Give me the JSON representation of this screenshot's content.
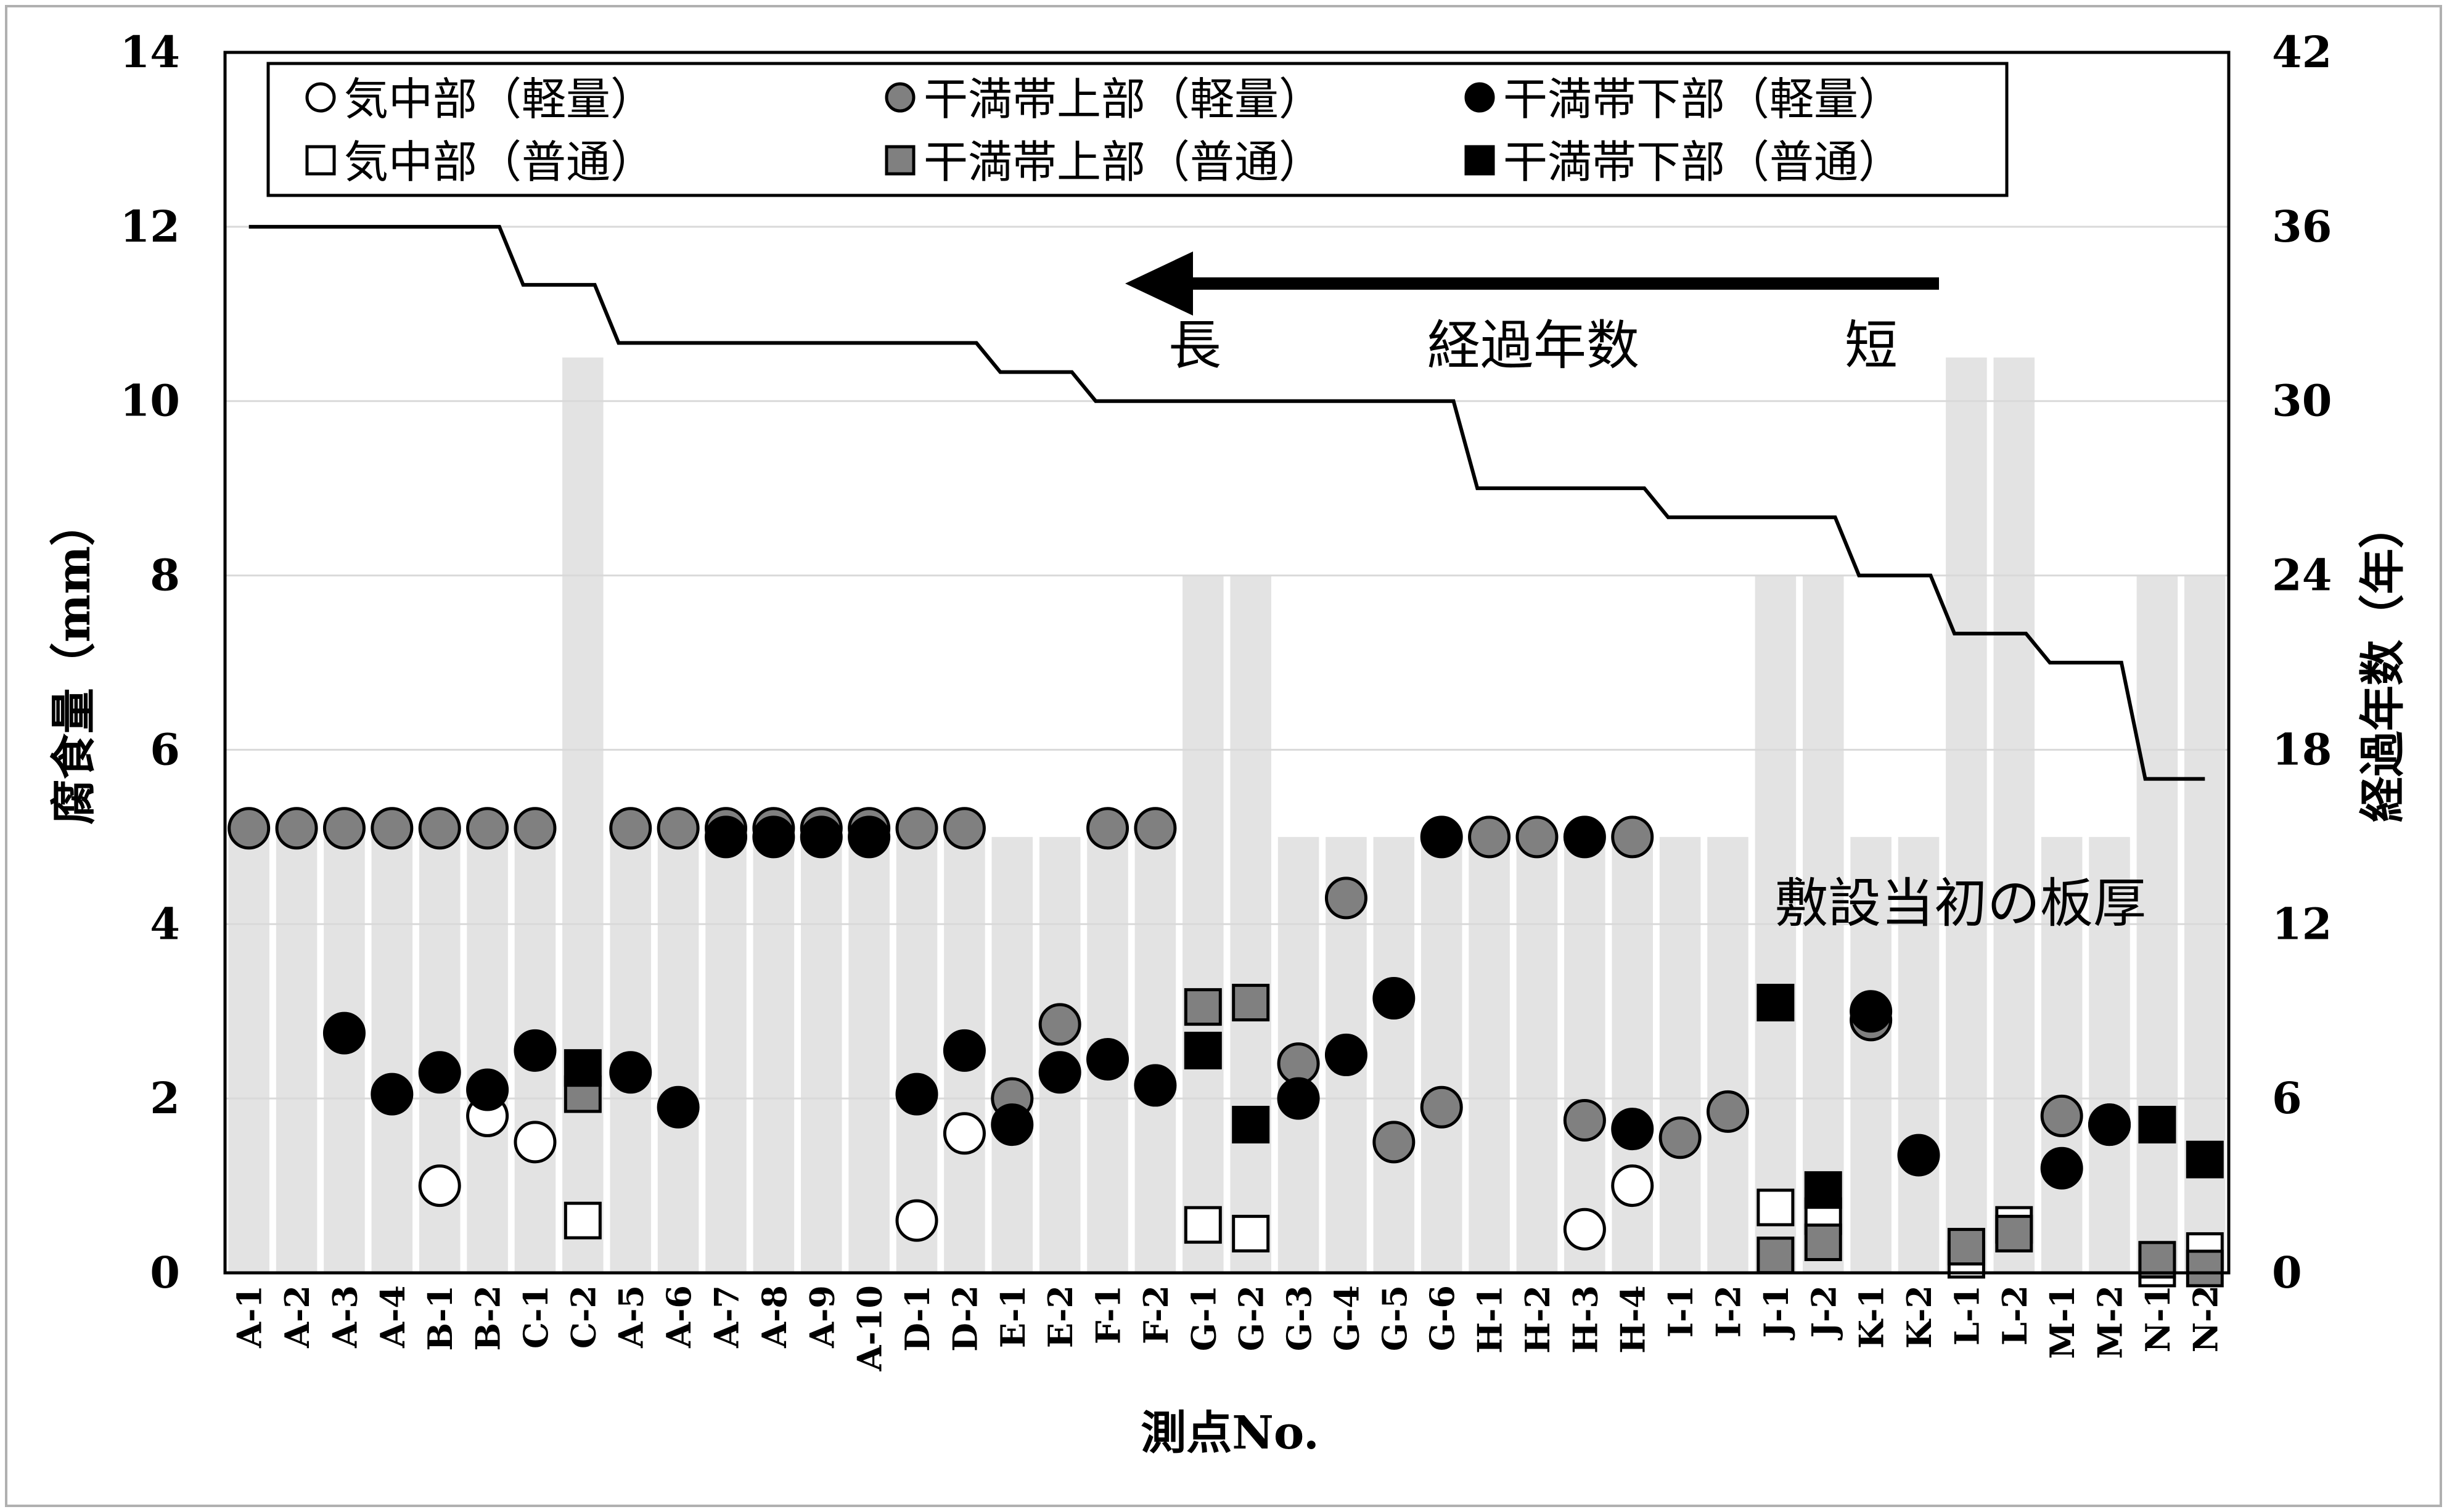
{
  "chart_data": {
    "type": "scatter",
    "xlabel": "測点No.",
    "ylabel": "腐食量（mm）",
    "y2label": "経過年数（年）",
    "ylim": [
      0,
      14
    ],
    "y2lim": [
      0,
      42
    ],
    "yticks": [
      "0",
      "2",
      "4",
      "6",
      "8",
      "10",
      "12",
      "14"
    ],
    "y2ticks": [
      "0",
      "6",
      "12",
      "18",
      "24",
      "30",
      "36",
      "42"
    ],
    "grid": "horizontal",
    "legend_position": "top",
    "categories": [
      "A-1",
      "A-2",
      "A-3",
      "A-4",
      "B-1",
      "B-2",
      "C-1",
      "C-2",
      "A-5",
      "A-6",
      "A-7",
      "A-8",
      "A-9",
      "A-10",
      "D-1",
      "D-2",
      "E-1",
      "E-2",
      "F-1",
      "F-2",
      "G-1",
      "G-2",
      "G-3",
      "G-4",
      "G-5",
      "G-6",
      "H-1",
      "H-2",
      "H-3",
      "H-4",
      "I-1",
      "I-2",
      "J-1",
      "J-2",
      "K-1",
      "K-2",
      "L-1",
      "L-2",
      "M-1",
      "M-2",
      "N-1",
      "N-2"
    ],
    "thickness": {
      "name": "敷設当初の板厚",
      "color": "#e3e3e3",
      "values": [
        5,
        5,
        5,
        5,
        5,
        5,
        5,
        10.5,
        5,
        5,
        5,
        5,
        5,
        5,
        5,
        5,
        5,
        5,
        5,
        5,
        8,
        8,
        5,
        5,
        5,
        5,
        5,
        5,
        5,
        5,
        5,
        5,
        8,
        8,
        5,
        5,
        10.5,
        10.5,
        5,
        5,
        8,
        8
      ]
    },
    "years": {
      "name": "経過年数",
      "values": [
        36,
        36,
        36,
        36,
        36,
        36,
        34,
        34,
        32,
        32,
        32,
        32,
        32,
        32,
        32,
        32,
        31,
        31,
        30,
        30,
        30,
        30,
        30,
        30,
        30,
        30,
        27,
        27,
        27,
        27,
        26,
        26,
        26,
        26,
        24,
        24,
        22,
        22,
        21,
        21,
        17,
        17
      ]
    },
    "series": [
      {
        "name": "気中部（軽量）",
        "marker": "circle",
        "fill": "#ffffff",
        "values": [
          null,
          null,
          null,
          null,
          1.0,
          1.8,
          1.5,
          null,
          null,
          null,
          null,
          null,
          null,
          null,
          0.6,
          1.6,
          null,
          null,
          null,
          null,
          null,
          null,
          null,
          null,
          null,
          null,
          null,
          null,
          0.5,
          1.0,
          null,
          null,
          null,
          null,
          null,
          null,
          null,
          null,
          null,
          null,
          null,
          null
        ]
      },
      {
        "name": "干満帯上部（軽量）",
        "marker": "circle",
        "fill": "#808080",
        "values": [
          5.1,
          5.1,
          5.1,
          5.1,
          5.1,
          5.1,
          5.1,
          null,
          5.1,
          5.1,
          5.1,
          5.1,
          5.1,
          5.1,
          5.1,
          5.1,
          2.0,
          2.85,
          5.1,
          5.1,
          null,
          null,
          2.4,
          4.3,
          1.5,
          1.9,
          5.0,
          5.0,
          1.75,
          5.0,
          1.55,
          1.85,
          null,
          null,
          2.9,
          null,
          null,
          null,
          1.8,
          1.7,
          null,
          null
        ]
      },
      {
        "name": "干満帯下部（軽量）",
        "marker": "circle",
        "fill": "#000000",
        "values": [
          null,
          null,
          2.75,
          2.05,
          2.3,
          2.1,
          2.55,
          null,
          2.3,
          1.9,
          5.0,
          5.0,
          5.0,
          5.0,
          2.05,
          2.55,
          1.7,
          2.3,
          2.45,
          2.15,
          null,
          null,
          2.0,
          2.5,
          3.15,
          5.0,
          null,
          null,
          5.0,
          1.65,
          null,
          null,
          null,
          null,
          3.0,
          1.35,
          null,
          null,
          1.2,
          1.7,
          null,
          null
        ]
      },
      {
        "name": "気中部（普通）",
        "marker": "square",
        "fill": "#ffffff",
        "values": [
          null,
          null,
          null,
          null,
          null,
          null,
          null,
          0.6,
          null,
          null,
          null,
          null,
          null,
          null,
          null,
          null,
          null,
          null,
          null,
          null,
          0.55,
          0.45,
          null,
          null,
          null,
          null,
          null,
          null,
          null,
          null,
          null,
          null,
          0.75,
          0.65,
          null,
          null,
          0.15,
          0.55,
          null,
          null,
          0.05,
          0.25
        ]
      },
      {
        "name": "干満帯上部（普通）",
        "marker": "square",
        "fill": "#808080",
        "values": [
          null,
          null,
          null,
          null,
          null,
          null,
          null,
          2.05,
          null,
          null,
          null,
          null,
          null,
          null,
          null,
          null,
          null,
          null,
          null,
          null,
          3.05,
          3.1,
          null,
          null,
          null,
          null,
          null,
          null,
          null,
          null,
          null,
          null,
          0.2,
          0.35,
          null,
          null,
          0.3,
          0.45,
          null,
          null,
          0.15,
          0.05
        ]
      },
      {
        "name": "干満帯下部（普通）",
        "marker": "square",
        "fill": "#000000",
        "values": [
          null,
          null,
          null,
          null,
          null,
          null,
          null,
          2.35,
          null,
          null,
          null,
          null,
          null,
          null,
          null,
          null,
          null,
          null,
          null,
          null,
          2.55,
          1.7,
          null,
          null,
          null,
          null,
          null,
          null,
          null,
          null,
          null,
          null,
          3.1,
          0.95,
          null,
          null,
          null,
          null,
          null,
          null,
          1.7,
          1.3
        ]
      }
    ],
    "annotations": {
      "long": "長",
      "years_label": "経過年数",
      "short": "短",
      "thickness_label": "敷設当初の板厚"
    }
  }
}
